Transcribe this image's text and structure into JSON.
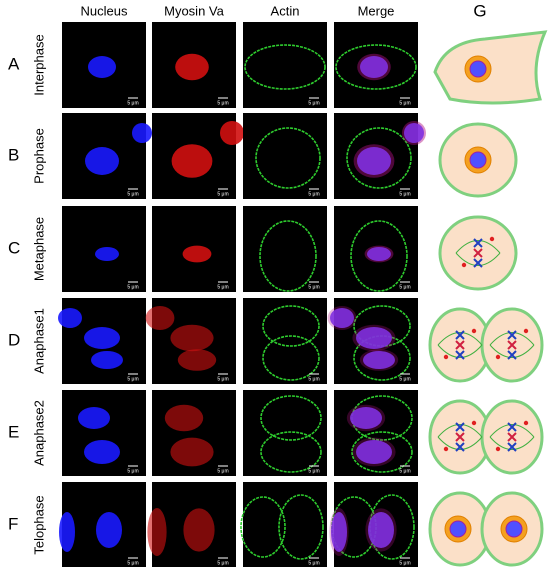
{
  "header": {
    "columns": [
      "Nucleus",
      "Myosin Va",
      "Actin",
      "Merge"
    ],
    "diagram_label": "G"
  },
  "rows": [
    {
      "letter": "A",
      "phase": "Interphase",
      "scale_bars": [
        "5 μm",
        "5 μm",
        "5 μm",
        "5 μm"
      ]
    },
    {
      "letter": "B",
      "phase": "Prophase",
      "scale_bars": [
        "5 μm",
        "5 μm",
        "5 μm",
        "5 μm"
      ]
    },
    {
      "letter": "C",
      "phase": "Metaphase",
      "scale_bars": [
        "5 μm",
        "5 μm",
        "5 μm",
        "5 μm"
      ]
    },
    {
      "letter": "D",
      "phase": "Anaphase1",
      "scale_bars": [
        "5 μm",
        "5 μm",
        "5 μm",
        "5 μm"
      ]
    },
    {
      "letter": "E",
      "phase": "Anaphase2",
      "scale_bars": [
        "5 μm",
        "5 μm",
        "5 μm",
        "5 μm"
      ]
    },
    {
      "letter": "F",
      "phase": "Telophase",
      "scale_bars": [
        "5 μm",
        "5 μm",
        "5 μm",
        "5 μm"
      ]
    }
  ]
}
